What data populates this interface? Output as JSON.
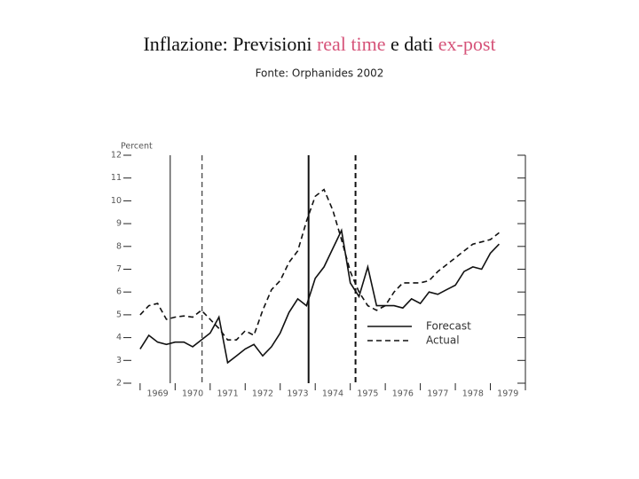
{
  "chart_data": {
    "type": "line",
    "title_parts": [
      "Inflazione: Previsioni ",
      "real time",
      " e dati ",
      "ex-post"
    ],
    "title_colors": [
      "#111111",
      "#d6547a",
      "#111111",
      "#d6547a"
    ],
    "subtitle": "Fonte: Orphanides 2002",
    "ylabel": "Percent",
    "ylim": [
      2,
      12
    ],
    "yticks": [
      2,
      3,
      4,
      5,
      6,
      7,
      8,
      9,
      10,
      11,
      12
    ],
    "xlim": [
      1968.75,
      1980
    ],
    "xticks": [
      1969,
      1970,
      1971,
      1972,
      1973,
      1974,
      1975,
      1976,
      1977,
      1978,
      1979,
      1980
    ],
    "xtick_labels": [
      {
        "value": 1969.5,
        "label": "1969"
      },
      {
        "value": 1970.5,
        "label": "1970"
      },
      {
        "value": 1971.5,
        "label": "1971"
      },
      {
        "value": 1972.5,
        "label": "1972"
      },
      {
        "value": 1973.5,
        "label": "1973"
      },
      {
        "value": 1974.5,
        "label": "1974"
      },
      {
        "value": 1975.5,
        "label": "1975"
      },
      {
        "value": 1976.5,
        "label": "1976"
      },
      {
        "value": 1977.5,
        "label": "1977"
      },
      {
        "value": 1978.5,
        "label": "1978"
      },
      {
        "value": 1979.5,
        "label": "1979"
      }
    ],
    "x": [
      1969,
      1969.25,
      1969.5,
      1969.75,
      1970,
      1970.25,
      1970.5,
      1970.75,
      1971,
      1971.25,
      1971.5,
      1971.75,
      1972,
      1972.25,
      1972.5,
      1972.75,
      1973,
      1973.25,
      1973.5,
      1973.75,
      1974,
      1974.25,
      1974.5,
      1974.75,
      1975,
      1975.25,
      1975.5,
      1975.75,
      1976,
      1976.25,
      1976.5,
      1976.75,
      1977,
      1977.25,
      1977.5,
      1977.75,
      1978,
      1978.25,
      1978.5,
      1978.75,
      1979,
      1979.25
    ],
    "series": [
      {
        "name": "Forecast",
        "color": "#111111",
        "style": "solid",
        "values": [
          3.5,
          4.1,
          3.8,
          3.7,
          3.8,
          3.8,
          3.6,
          3.9,
          4.2,
          4.9,
          2.9,
          3.2,
          3.5,
          3.7,
          3.2,
          3.6,
          4.2,
          5.1,
          5.7,
          5.4,
          6.6,
          7.1,
          7.9,
          8.7,
          6.4,
          5.8,
          7.1,
          5.4,
          5.4,
          5.4,
          5.3,
          5.7,
          5.5,
          6.0,
          5.9,
          6.1,
          6.3,
          6.9,
          7.1,
          7.0,
          7.7,
          8.1
        ]
      },
      {
        "name": "Actual",
        "color": "#111111",
        "style": "dashed",
        "values": [
          5.0,
          5.4,
          5.5,
          4.8,
          4.9,
          4.95,
          4.9,
          5.2,
          4.8,
          4.4,
          3.9,
          3.9,
          4.3,
          4.1,
          5.2,
          6.1,
          6.5,
          7.3,
          7.8,
          9.1,
          10.2,
          10.5,
          9.6,
          8.3,
          6.9,
          6.0,
          5.4,
          5.2,
          5.4,
          6.0,
          6.4,
          6.4,
          6.4,
          6.5,
          6.9,
          7.2,
          7.5,
          7.8,
          8.1,
          8.2,
          8.3,
          8.6
        ]
      }
    ],
    "vlines": [
      {
        "x": 1969.86,
        "style": "solid"
      },
      {
        "x": 1970.77,
        "style": "dashed"
      },
      {
        "x": 1973.81,
        "style": "thick"
      },
      {
        "x": 1975.15,
        "style": "thick-dashed"
      }
    ],
    "legend": "lower right"
  }
}
